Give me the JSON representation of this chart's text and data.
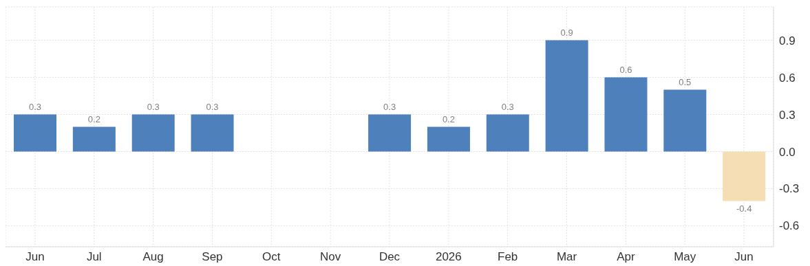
{
  "chart_data": {
    "type": "bar",
    "categories": [
      "Jun",
      "Jul",
      "Aug",
      "Sep",
      "Oct",
      "Nov",
      "Dec",
      "2026",
      "Feb",
      "Mar",
      "Apr",
      "May",
      "Jun"
    ],
    "values": [
      0.3,
      0.2,
      0.3,
      0.3,
      null,
      null,
      0.3,
      0.2,
      0.3,
      0.9,
      0.6,
      0.5,
      -0.4
    ],
    "colors": [
      "#4e80bc",
      "#4e80bc",
      "#4e80bc",
      "#4e80bc",
      "#4e80bc",
      "#4e80bc",
      "#4e80bc",
      "#4e80bc",
      "#4e80bc",
      "#4e80bc",
      "#4e80bc",
      "#4e80bc",
      "#f5deb3"
    ],
    "ylim": [
      -0.77,
      1.17
    ],
    "yticks": [
      -0.6,
      -0.3,
      {
        "value": 0,
        "label": "0.0"
      },
      0.3,
      0.6,
      0.9
    ],
    "grid": true,
    "data_labels": true
  }
}
